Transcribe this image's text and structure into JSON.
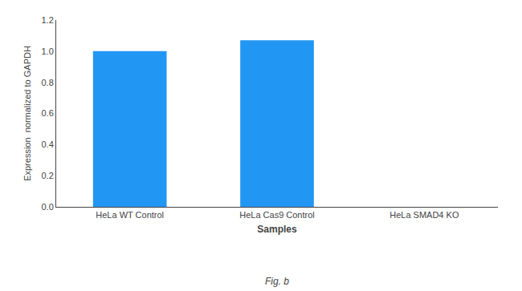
{
  "chart_data": {
    "type": "bar",
    "categories": [
      "HeLa WT Control",
      "HeLa Cas9 Control",
      "HeLa SMAD4 KO"
    ],
    "values": [
      1.0,
      1.07,
      0.0
    ],
    "color": "#2196F3",
    "xlabel": "Samples",
    "ylabel": "Expression  normalized to GAPDH",
    "ylim": [
      0,
      1.2
    ],
    "yticks": [
      {
        "value": 0,
        "label": "0.0"
      },
      0.2,
      0.4,
      0.6,
      0.8,
      {
        "value": 1.0,
        "label": "1.0"
      },
      1.2
    ],
    "grid": false,
    "annotations": [
      "Fig. b"
    ]
  }
}
